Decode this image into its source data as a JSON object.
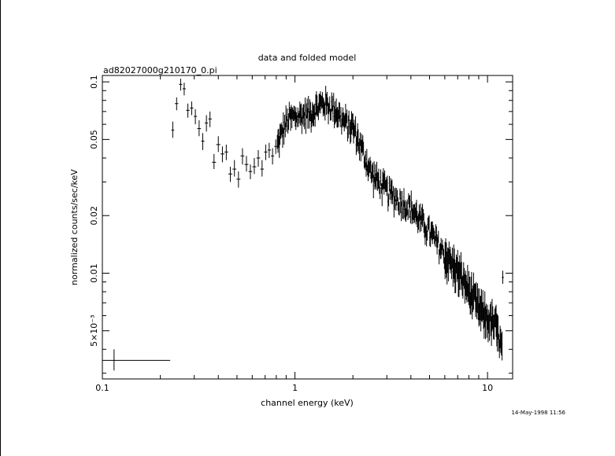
{
  "chart_data": {
    "type": "scatter",
    "title": "data and folded model",
    "subtitle": "ad82027000g210170_0.pi",
    "xlabel": "channel energy (keV)",
    "ylabel": "normalized counts/sec/keV",
    "x_scale": "log",
    "y_scale": "log",
    "xlim": [
      0.1,
      13.5
    ],
    "ylim": [
      0.0028,
      0.108
    ],
    "x_ticks": [
      {
        "v": 0.1,
        "label": "0.1"
      },
      {
        "v": 1,
        "label": "1"
      },
      {
        "v": 10,
        "label": "10"
      }
    ],
    "y_ticks": [
      {
        "v": 0.1,
        "label": "0.1"
      },
      {
        "v": 0.05,
        "label": "0.05"
      },
      {
        "v": 0.02,
        "label": "0.02"
      },
      {
        "v": 0.01,
        "label": "0.01"
      },
      {
        "v": 0.005,
        "label": "5×10⁻³"
      }
    ],
    "grid": false,
    "series": [
      {
        "marker": "cross-errorbar",
        "low_energy_points": [
          {
            "x": 0.115,
            "y": 0.0035,
            "xlo": 0.1,
            "xhi": 0.225,
            "ylo": 0.0031,
            "yhi": 0.004
          },
          {
            "x": 0.232,
            "y": 0.056,
            "xlo": 0.228,
            "xhi": 0.236,
            "ylo": 0.051,
            "yhi": 0.062
          },
          {
            "x": 0.243,
            "y": 0.077,
            "xlo": 0.238,
            "xhi": 0.248,
            "ylo": 0.071,
            "yhi": 0.083
          },
          {
            "x": 0.255,
            "y": 0.097,
            "xlo": 0.25,
            "xhi": 0.26,
            "ylo": 0.09,
            "yhi": 0.104
          },
          {
            "x": 0.266,
            "y": 0.092,
            "xlo": 0.261,
            "xhi": 0.271,
            "ylo": 0.085,
            "yhi": 0.099
          },
          {
            "x": 0.278,
            "y": 0.071,
            "xlo": 0.272,
            "xhi": 0.284,
            "ylo": 0.065,
            "yhi": 0.077
          },
          {
            "x": 0.291,
            "y": 0.073,
            "xlo": 0.285,
            "xhi": 0.297,
            "ylo": 0.067,
            "yhi": 0.079
          },
          {
            "x": 0.304,
            "y": 0.066,
            "xlo": 0.298,
            "xhi": 0.31,
            "ylo": 0.06,
            "yhi": 0.072
          },
          {
            "x": 0.318,
            "y": 0.057,
            "xlo": 0.311,
            "xhi": 0.325,
            "ylo": 0.052,
            "yhi": 0.063
          },
          {
            "x": 0.332,
            "y": 0.049,
            "xlo": 0.326,
            "xhi": 0.339,
            "ylo": 0.044,
            "yhi": 0.054
          },
          {
            "x": 0.347,
            "y": 0.061,
            "xlo": 0.34,
            "xhi": 0.354,
            "ylo": 0.055,
            "yhi": 0.067
          },
          {
            "x": 0.362,
            "y": 0.064,
            "xlo": 0.355,
            "xhi": 0.37,
            "ylo": 0.058,
            "yhi": 0.07
          },
          {
            "x": 0.38,
            "y": 0.038,
            "xlo": 0.371,
            "xhi": 0.389,
            "ylo": 0.035,
            "yhi": 0.042
          },
          {
            "x": 0.4,
            "y": 0.047,
            "xlo": 0.39,
            "xhi": 0.41,
            "ylo": 0.043,
            "yhi": 0.052
          },
          {
            "x": 0.42,
            "y": 0.042,
            "xlo": 0.411,
            "xhi": 0.43,
            "ylo": 0.038,
            "yhi": 0.046
          },
          {
            "x": 0.44,
            "y": 0.043,
            "xlo": 0.431,
            "xhi": 0.45,
            "ylo": 0.039,
            "yhi": 0.047
          },
          {
            "x": 0.462,
            "y": 0.033,
            "xlo": 0.451,
            "xhi": 0.473,
            "ylo": 0.03,
            "yhi": 0.036
          },
          {
            "x": 0.485,
            "y": 0.035,
            "xlo": 0.474,
            "xhi": 0.496,
            "ylo": 0.032,
            "yhi": 0.039
          },
          {
            "x": 0.509,
            "y": 0.031,
            "xlo": 0.497,
            "xhi": 0.521,
            "ylo": 0.028,
            "yhi": 0.034
          },
          {
            "x": 0.534,
            "y": 0.041,
            "xlo": 0.522,
            "xhi": 0.546,
            "ylo": 0.037,
            "yhi": 0.045
          },
          {
            "x": 0.56,
            "y": 0.037,
            "xlo": 0.547,
            "xhi": 0.573,
            "ylo": 0.034,
            "yhi": 0.041
          },
          {
            "x": 0.587,
            "y": 0.034,
            "xlo": 0.574,
            "xhi": 0.6,
            "ylo": 0.031,
            "yhi": 0.037
          },
          {
            "x": 0.615,
            "y": 0.036,
            "xlo": 0.601,
            "xhi": 0.63,
            "ylo": 0.033,
            "yhi": 0.04
          },
          {
            "x": 0.645,
            "y": 0.04,
            "xlo": 0.631,
            "xhi": 0.66,
            "ylo": 0.036,
            "yhi": 0.044
          },
          {
            "x": 0.675,
            "y": 0.035,
            "xlo": 0.661,
            "xhi": 0.69,
            "ylo": 0.032,
            "yhi": 0.039
          },
          {
            "x": 0.705,
            "y": 0.043,
            "xlo": 0.691,
            "xhi": 0.72,
            "ylo": 0.039,
            "yhi": 0.047
          },
          {
            "x": 0.735,
            "y": 0.044,
            "xlo": 0.721,
            "xhi": 0.75,
            "ylo": 0.04,
            "yhi": 0.048
          },
          {
            "x": 0.765,
            "y": 0.041,
            "xlo": 0.751,
            "xhi": 0.78,
            "ylo": 0.037,
            "yhi": 0.045
          },
          {
            "x": 0.795,
            "y": 0.046,
            "xlo": 0.781,
            "xhi": 0.81,
            "ylo": 0.042,
            "yhi": 0.05
          },
          {
            "x": 12.0,
            "y": 0.0095,
            "xlo": 11.85,
            "xhi": 12.15,
            "ylo": 0.0088,
            "yhi": 0.0103
          }
        ],
        "dense_band": {
          "x_start": 0.81,
          "x_end": 11.9,
          "points": 340,
          "anchors": [
            {
              "x": 0.81,
              "y": 0.047
            },
            {
              "x": 0.86,
              "y": 0.055
            },
            {
              "x": 0.92,
              "y": 0.064
            },
            {
              "x": 1.0,
              "y": 0.066
            },
            {
              "x": 1.2,
              "y": 0.069
            },
            {
              "x": 1.4,
              "y": 0.078
            },
            {
              "x": 1.6,
              "y": 0.073
            },
            {
              "x": 1.8,
              "y": 0.062
            },
            {
              "x": 2.0,
              "y": 0.058
            },
            {
              "x": 2.2,
              "y": 0.046
            },
            {
              "x": 2.5,
              "y": 0.033
            },
            {
              "x": 3.0,
              "y": 0.027
            },
            {
              "x": 3.5,
              "y": 0.024
            },
            {
              "x": 4.0,
              "y": 0.022
            },
            {
              "x": 5.0,
              "y": 0.0165
            },
            {
              "x": 6.0,
              "y": 0.0125
            },
            {
              "x": 7.0,
              "y": 0.0103
            },
            {
              "x": 8.0,
              "y": 0.0082
            },
            {
              "x": 9.0,
              "y": 0.0066
            },
            {
              "x": 10.0,
              "y": 0.0058
            },
            {
              "x": 11.0,
              "y": 0.0054
            },
            {
              "x": 11.9,
              "y": 0.004
            }
          ],
          "scatter_frac": 0.12,
          "err_frac": 0.1
        }
      }
    ],
    "timestamp": "14-May-1998 11:56"
  }
}
